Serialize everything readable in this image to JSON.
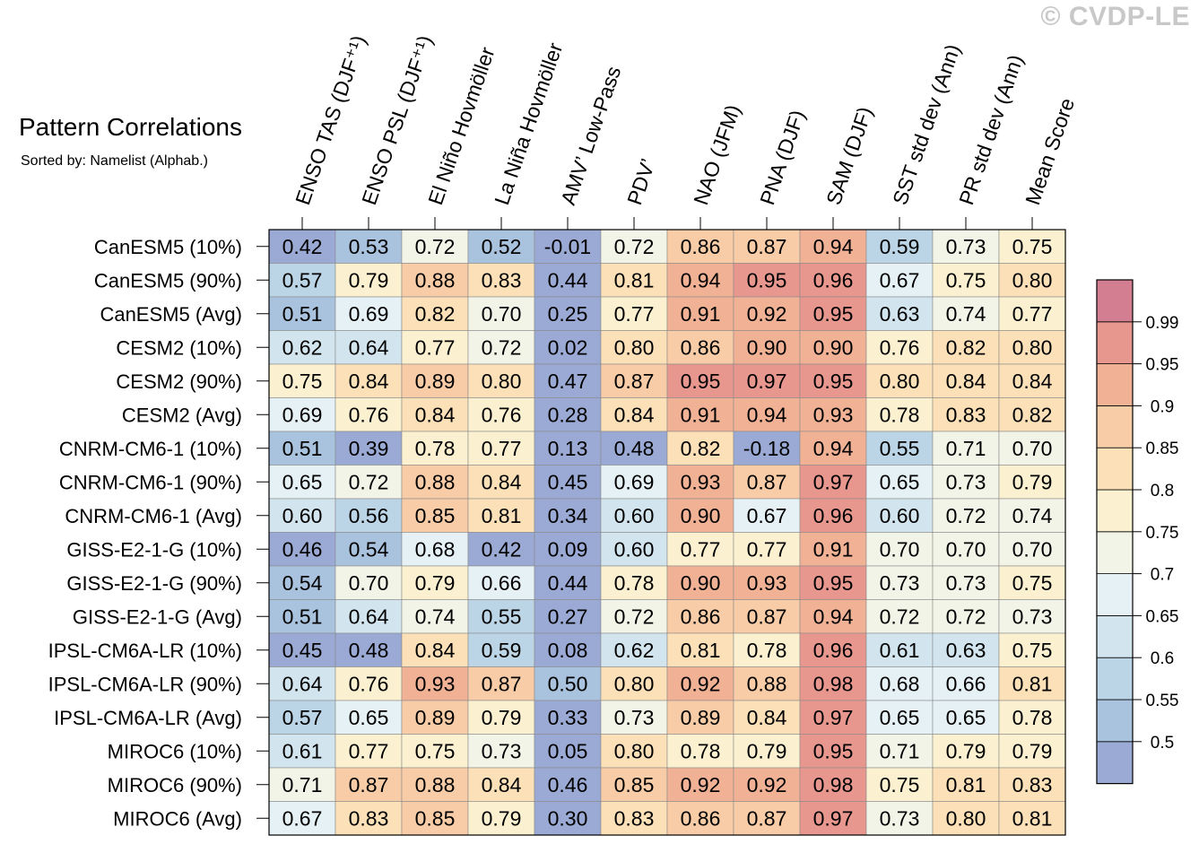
{
  "chart_data": {
    "type": "heatmap",
    "title": "Pattern Correlations",
    "subtitle": "Sorted by: Namelist (Alphab.)",
    "watermark": "© CVDP-LE",
    "columns": [
      "ENSO TAS (DJF⁺¹)",
      "ENSO PSL (DJF⁺¹)",
      "El Niño Hovmöller",
      "La Niña Hovmöller",
      "AMV’ Low-Pass",
      "PDV’",
      "NAO (JFM)",
      "PNA (DJF)",
      "SAM (DJF)",
      "SST std dev (Ann)",
      "PR std dev (Ann)",
      "Mean Score"
    ],
    "rows": [
      "CanESM5 (10%)",
      "CanESM5 (90%)",
      "CanESM5 (Avg)",
      "CESM2 (10%)",
      "CESM2 (90%)",
      "CESM2 (Avg)",
      "CNRM-CM6-1 (10%)",
      "CNRM-CM6-1 (90%)",
      "CNRM-CM6-1 (Avg)",
      "GISS-E2-1-G (10%)",
      "GISS-E2-1-G (90%)",
      "GISS-E2-1-G (Avg)",
      "IPSL-CM6A-LR (10%)",
      "IPSL-CM6A-LR (90%)",
      "IPSL-CM6A-LR (Avg)",
      "MIROC6 (10%)",
      "MIROC6 (90%)",
      "MIROC6 (Avg)"
    ],
    "values": [
      [
        "0.42",
        "0.53",
        "0.72",
        "0.52",
        "-0.01",
        "0.72",
        "0.86",
        "0.87",
        "0.94",
        "0.59",
        "0.73",
        "0.75"
      ],
      [
        "0.57",
        "0.79",
        "0.88",
        "0.83",
        "0.44",
        "0.81",
        "0.94",
        "0.95",
        "0.96",
        "0.67",
        "0.75",
        "0.80"
      ],
      [
        "0.51",
        "0.69",
        "0.82",
        "0.70",
        "0.25",
        "0.77",
        "0.91",
        "0.92",
        "0.95",
        "0.63",
        "0.74",
        "0.77"
      ],
      [
        "0.62",
        "0.64",
        "0.77",
        "0.72",
        "0.02",
        "0.80",
        "0.86",
        "0.90",
        "0.90",
        "0.76",
        "0.82",
        "0.80"
      ],
      [
        "0.75",
        "0.84",
        "0.89",
        "0.80",
        "0.47",
        "0.87",
        "0.95",
        "0.97",
        "0.95",
        "0.80",
        "0.84",
        "0.84"
      ],
      [
        "0.69",
        "0.76",
        "0.84",
        "0.76",
        "0.28",
        "0.84",
        "0.91",
        "0.94",
        "0.93",
        "0.78",
        "0.83",
        "0.82"
      ],
      [
        "0.51",
        "0.39",
        "0.78",
        "0.77",
        "0.13",
        "0.48",
        "0.82",
        "-0.18",
        "0.94",
        "0.55",
        "0.71",
        "0.70"
      ],
      [
        "0.65",
        "0.72",
        "0.88",
        "0.84",
        "0.45",
        "0.69",
        "0.93",
        "0.87",
        "0.97",
        "0.65",
        "0.73",
        "0.79"
      ],
      [
        "0.60",
        "0.56",
        "0.85",
        "0.81",
        "0.34",
        "0.60",
        "0.90",
        "0.67",
        "0.96",
        "0.60",
        "0.72",
        "0.74"
      ],
      [
        "0.46",
        "0.54",
        "0.68",
        "0.42",
        "0.09",
        "0.60",
        "0.77",
        "0.77",
        "0.91",
        "0.70",
        "0.70",
        "0.70"
      ],
      [
        "0.54",
        "0.70",
        "0.79",
        "0.66",
        "0.44",
        "0.78",
        "0.90",
        "0.93",
        "0.95",
        "0.73",
        "0.73",
        "0.75"
      ],
      [
        "0.51",
        "0.64",
        "0.74",
        "0.55",
        "0.27",
        "0.72",
        "0.86",
        "0.87",
        "0.94",
        "0.72",
        "0.72",
        "0.73"
      ],
      [
        "0.45",
        "0.48",
        "0.84",
        "0.59",
        "0.08",
        "0.62",
        "0.81",
        "0.78",
        "0.96",
        "0.61",
        "0.63",
        "0.75"
      ],
      [
        "0.64",
        "0.76",
        "0.93",
        "0.87",
        "0.50",
        "0.80",
        "0.92",
        "0.88",
        "0.98",
        "0.68",
        "0.66",
        "0.81"
      ],
      [
        "0.57",
        "0.65",
        "0.89",
        "0.79",
        "0.33",
        "0.73",
        "0.89",
        "0.84",
        "0.97",
        "0.65",
        "0.65",
        "0.78"
      ],
      [
        "0.61",
        "0.77",
        "0.75",
        "0.73",
        "0.05",
        "0.80",
        "0.78",
        "0.79",
        "0.95",
        "0.71",
        "0.79",
        "0.79"
      ],
      [
        "0.71",
        "0.87",
        "0.88",
        "0.84",
        "0.46",
        "0.85",
        "0.92",
        "0.92",
        "0.98",
        "0.75",
        "0.81",
        "0.83"
      ],
      [
        "0.67",
        "0.83",
        "0.85",
        "0.79",
        "0.30",
        "0.83",
        "0.86",
        "0.87",
        "0.97",
        "0.73",
        "0.80",
        "0.81"
      ]
    ],
    "colorbar": {
      "levels": [
        "0.5",
        "0.55",
        "0.6",
        "0.65",
        "0.7",
        "0.75",
        "0.8",
        "0.85",
        "0.9",
        "0.95",
        "0.99"
      ],
      "colors": [
        "#9aaad4",
        "#a9c2de",
        "#bcd5e6",
        "#d2e5ef",
        "#e6f1f6",
        "#f3f4e8",
        "#fbf0cf",
        "#fbe0b8",
        "#f8cca6",
        "#f1b195",
        "#e8978e",
        "#d47e92"
      ]
    }
  }
}
